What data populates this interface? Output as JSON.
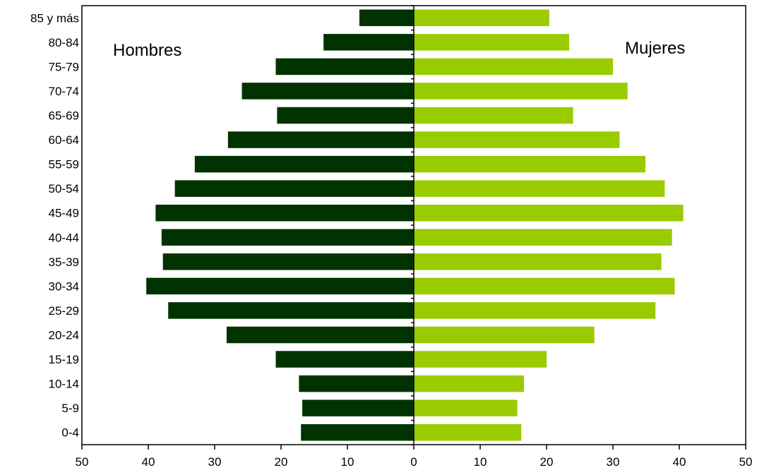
{
  "chart_data": {
    "type": "bar",
    "orientation": "horizontal",
    "layout": "population-pyramid",
    "categories": [
      "0-4",
      "5-9",
      "10-14",
      "15-19",
      "20-24",
      "25-29",
      "30-34",
      "35-39",
      "40-44",
      "45-49",
      "50-54",
      "55-59",
      "60-64",
      "65-69",
      "70-74",
      "75-79",
      "80-84",
      "85 y más"
    ],
    "series": [
      {
        "name": "Hombres",
        "side": "left",
        "color": "#003300",
        "values": [
          17.0,
          16.8,
          17.3,
          20.8,
          28.2,
          37.0,
          40.3,
          37.8,
          38.0,
          38.9,
          36.0,
          33.0,
          28.0,
          20.6,
          25.9,
          20.8,
          13.6,
          8.2
        ]
      },
      {
        "name": "Mujeres",
        "side": "right",
        "color": "#99cc00",
        "values": [
          16.2,
          15.6,
          16.6,
          20.0,
          27.2,
          36.4,
          39.3,
          37.3,
          38.9,
          40.6,
          37.8,
          34.9,
          31.0,
          24.0,
          32.2,
          30.0,
          23.4,
          20.4
        ]
      }
    ],
    "xlim": [
      -50,
      50
    ],
    "x_ticks": [
      -50,
      -40,
      -30,
      -20,
      -10,
      0,
      10,
      20,
      30,
      40,
      50
    ],
    "x_tick_labels": [
      "50",
      "40",
      "30",
      "20",
      "10",
      "0",
      "10",
      "20",
      "30",
      "40",
      "50"
    ],
    "title": "",
    "xlabel": "",
    "ylabel": "",
    "grid": false,
    "legend": "none"
  }
}
